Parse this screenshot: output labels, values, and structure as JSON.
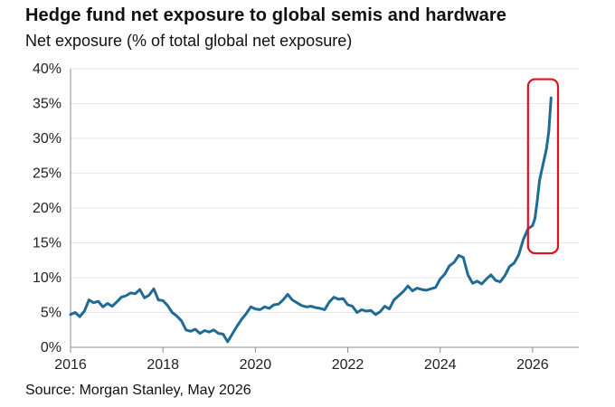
{
  "header": {
    "title": "Hedge fund net exposure to global semis and hardware",
    "subtitle": "Net exposure (% of total global net exposure)"
  },
  "footer": {
    "source": "Source: Morgan Stanley, May 2026"
  },
  "colors": {
    "line": "#1f6b94",
    "grid": "#e6e6e6",
    "axis": "#8c8c8c",
    "highlight": "#e0101e"
  },
  "chart_data": {
    "type": "line",
    "title": "Hedge fund net exposure to global semis and hardware",
    "ylabel": "Net exposure (% of total global net exposure)",
    "xlabel": "",
    "xlim": [
      2016,
      2027
    ],
    "ylim": [
      0,
      40
    ],
    "grid": "horizontal",
    "x_ticks": [
      2016,
      2018,
      2020,
      2022,
      2024,
      2026
    ],
    "x_tick_labels": [
      "2016",
      "2018",
      "2020",
      "2022",
      "2024",
      "2026"
    ],
    "y_ticks": [
      0,
      5,
      10,
      15,
      20,
      25,
      30,
      35,
      40
    ],
    "y_tick_labels": [
      "0%",
      "5%",
      "10%",
      "15%",
      "20%",
      "25%",
      "30%",
      "35%",
      "40%"
    ],
    "annotations": [
      {
        "type": "highlight-box",
        "x_range": [
          2025.9,
          2026.55
        ],
        "y_range": [
          13.5,
          38.5
        ]
      }
    ],
    "series": [
      {
        "x": [
          2016.0,
          2016.1,
          2016.2,
          2016.3,
          2016.4,
          2016.5,
          2016.6,
          2016.7,
          2016.8,
          2016.9,
          2017.0,
          2017.1,
          2017.2,
          2017.3,
          2017.4,
          2017.5,
          2017.6,
          2017.7,
          2017.8,
          2017.9,
          2018.0,
          2018.1,
          2018.2,
          2018.3,
          2018.4,
          2018.5,
          2018.6,
          2018.7,
          2018.8,
          2018.9,
          2019.0,
          2019.1,
          2019.2,
          2019.3,
          2019.4,
          2019.5,
          2019.6,
          2019.7,
          2019.8,
          2019.9,
          2020.0,
          2020.1,
          2020.2,
          2020.3,
          2020.4,
          2020.5,
          2020.6,
          2020.7,
          2020.8,
          2020.9,
          2021.0,
          2021.1,
          2021.2,
          2021.3,
          2021.4,
          2021.5,
          2021.6,
          2021.7,
          2021.8,
          2021.9,
          2022.0,
          2022.1,
          2022.2,
          2022.3,
          2022.4,
          2022.5,
          2022.6,
          2022.7,
          2022.8,
          2022.9,
          2023.0,
          2023.1,
          2023.2,
          2023.3,
          2023.4,
          2023.5,
          2023.6,
          2023.7,
          2023.8,
          2023.9,
          2024.0,
          2024.1,
          2024.2,
          2024.3,
          2024.4,
          2024.5,
          2024.6,
          2024.7,
          2024.8,
          2024.9,
          2025.0,
          2025.1,
          2025.2,
          2025.3,
          2025.4,
          2025.5,
          2025.6,
          2025.7,
          2025.8,
          2025.9,
          2026.0,
          2026.05,
          2026.1,
          2026.15,
          2026.2,
          2026.25,
          2026.3,
          2026.35,
          2026.4
        ],
        "y": [
          4.7,
          5.0,
          4.4,
          5.2,
          6.8,
          6.4,
          6.6,
          5.8,
          6.3,
          5.9,
          6.5,
          7.2,
          7.4,
          7.8,
          7.7,
          8.3,
          7.1,
          7.5,
          8.4,
          6.8,
          6.7,
          6.0,
          5.0,
          4.5,
          3.8,
          2.5,
          2.3,
          2.6,
          2.0,
          2.4,
          2.2,
          2.5,
          2.0,
          1.9,
          0.8,
          1.9,
          3.0,
          4.0,
          4.8,
          5.8,
          5.5,
          5.4,
          5.8,
          5.6,
          6.1,
          6.2,
          6.8,
          7.6,
          6.8,
          6.4,
          6.0,
          5.8,
          5.9,
          5.7,
          5.6,
          5.4,
          6.5,
          7.2,
          6.9,
          7.0,
          6.1,
          5.9,
          5.0,
          5.4,
          5.2,
          5.3,
          4.7,
          5.1,
          5.9,
          5.5,
          6.8,
          7.4,
          8.0,
          8.8,
          8.1,
          8.5,
          8.3,
          8.2,
          8.4,
          8.6,
          9.8,
          10.5,
          11.7,
          12.2,
          13.2,
          12.9,
          10.4,
          9.2,
          9.5,
          9.1,
          9.8,
          10.4,
          9.6,
          9.4,
          10.3,
          11.6,
          12.1,
          13.3,
          15.5,
          17.0,
          17.5,
          18.5,
          21.0,
          24.0,
          25.5,
          27.0,
          28.5,
          31.0,
          35.8
        ]
      }
    ]
  }
}
